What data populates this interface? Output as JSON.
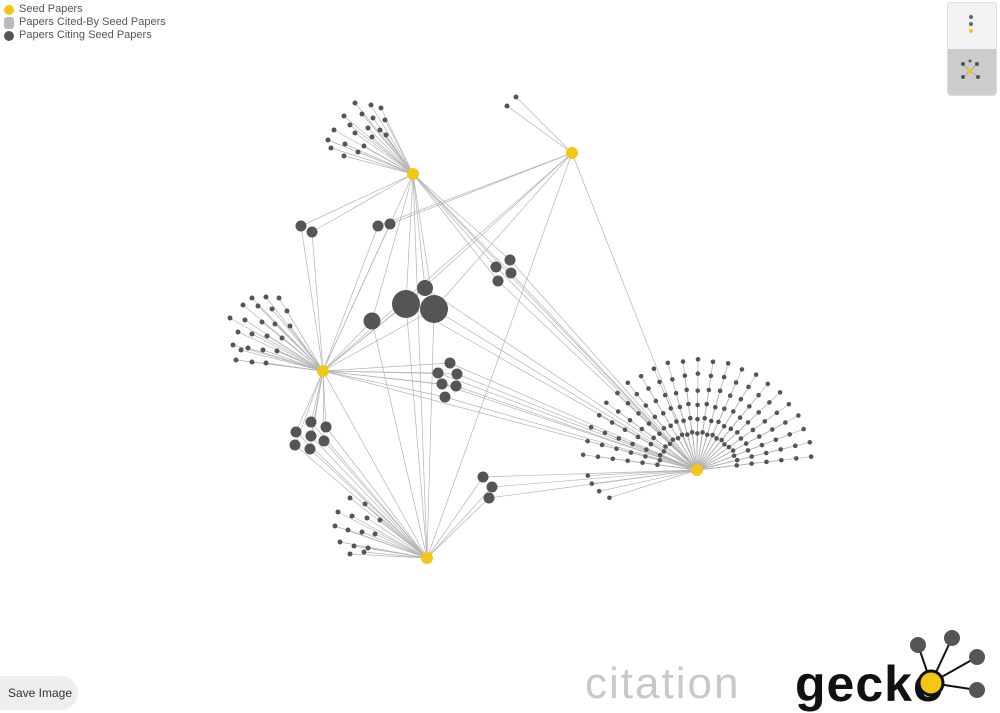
{
  "legend": {
    "items": [
      {
        "label": "Seed Papers",
        "color": "#f5c518"
      },
      {
        "label": "Papers Cited-By Seed Papers",
        "color": "#bbbbbb"
      },
      {
        "label": "Papers Citing Seed Papers",
        "color": "#555555"
      }
    ]
  },
  "toolbar": {
    "save_label": "Save Image"
  },
  "view_switcher": {
    "options": [
      {
        "name": "list-view",
        "icon": "list-view-icon",
        "active": false
      },
      {
        "name": "network-view",
        "icon": "network-view-icon",
        "active": true
      }
    ]
  },
  "logo": {
    "word1": "citation",
    "word2": "gecko"
  },
  "colors": {
    "seed": "#f5c518",
    "cited": "#bbbbbb",
    "citing": "#555555",
    "edge": "#b4b4b4"
  }
}
